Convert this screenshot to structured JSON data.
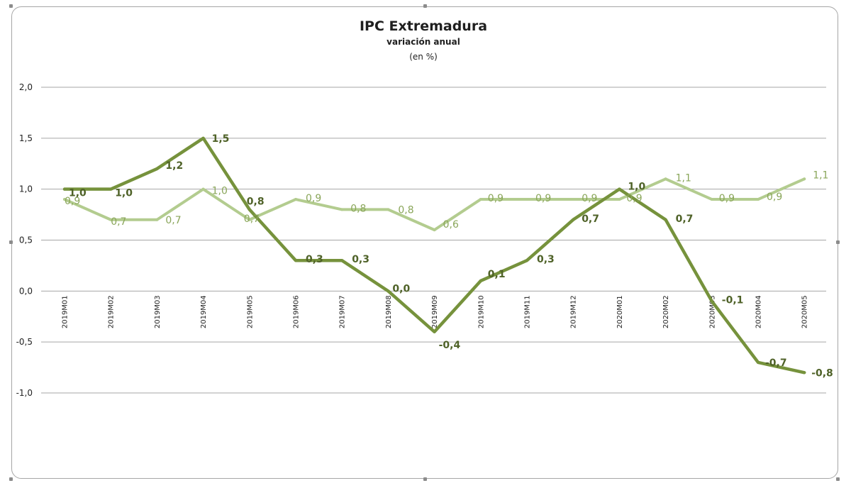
{
  "chart_data": {
    "type": "line",
    "title": "IPC Extremadura",
    "subtitle": "variación anual",
    "unit": "(en %)",
    "categories": [
      "2019M01",
      "2019M02",
      "2019M03",
      "2019M04",
      "2019M05",
      "2019M06",
      "2019M07",
      "2019M08",
      "2019M09",
      "2019M10",
      "2019M11",
      "2019M12",
      "2020M01",
      "2020M02",
      "2020M03",
      "2020M04",
      "2020M05"
    ],
    "ylim": [
      -1.0,
      2.0
    ],
    "yticks": [
      2.0,
      1.5,
      1.0,
      0.5,
      0.0,
      -0.5,
      -1.0
    ],
    "ytick_labels": [
      "2,0",
      "1,5",
      "1,0",
      "0,5",
      "0,0",
      "-0,5",
      "-1,0"
    ],
    "grid": true,
    "legend": "none",
    "series": [
      {
        "color": "#76923c",
        "label_color": "#4f6228",
        "values": [
          1.0,
          1.0,
          1.2,
          1.5,
          0.8,
          0.3,
          0.3,
          0.0,
          -0.4,
          0.1,
          0.3,
          0.7,
          1.0,
          0.7,
          -0.1,
          -0.7,
          -0.8
        ],
        "labels": [
          "1,0",
          "1,0",
          "1,2",
          "1,5",
          "0,8",
          "0,3",
          "0,3",
          "0,0",
          "-0,4",
          "0,1",
          "0,3",
          "0,7",
          "1,0",
          "0,7",
          "-0,1",
          "-0,7",
          "-0,8"
        ]
      },
      {
        "color": "#b3cc8f",
        "label_color": "#8aa65a",
        "values": [
          0.9,
          0.7,
          0.7,
          1.0,
          0.7,
          0.9,
          0.8,
          0.8,
          0.6,
          0.9,
          0.9,
          0.9,
          0.9,
          1.1,
          0.9,
          0.9,
          1.1
        ],
        "labels": [
          "0,9",
          "0,7",
          "0,7",
          "1,0",
          "0,7",
          "0,9",
          "0,8",
          "0,8",
          "0,6",
          "0,9",
          "0,9",
          "0,9",
          "0,9",
          "1,1",
          "0,9",
          "0,9",
          "1,1"
        ]
      }
    ]
  }
}
